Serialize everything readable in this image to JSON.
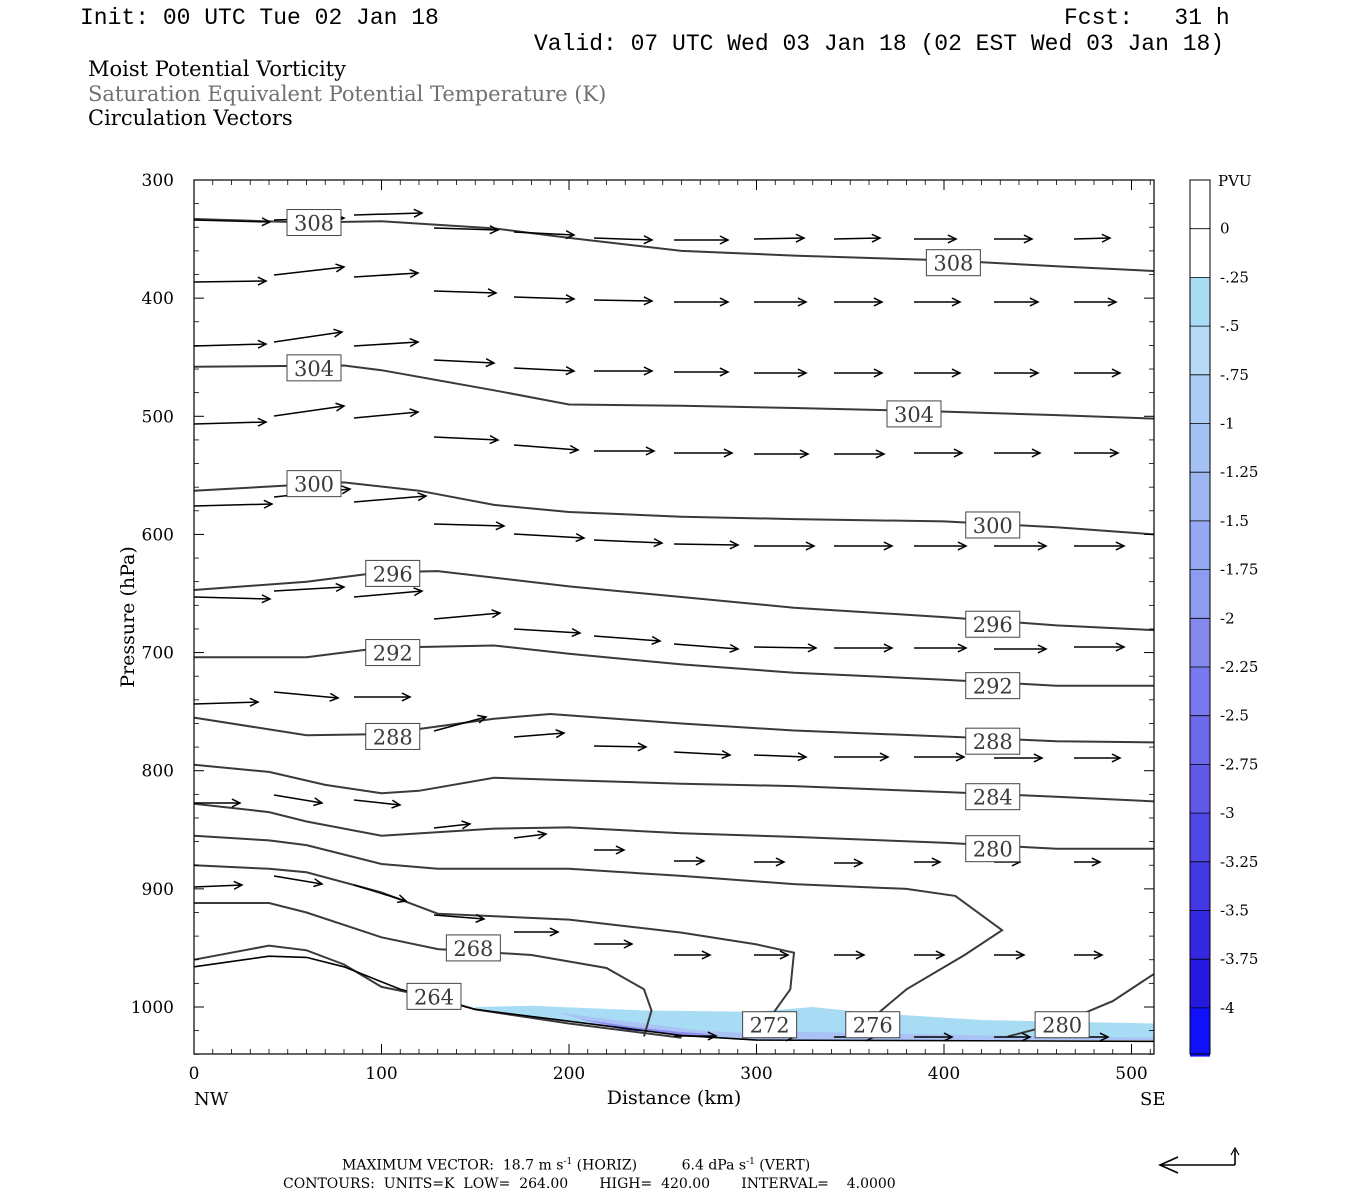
{
  "header": {
    "init": "Init: 00 UTC Tue 02 Jan 18",
    "fcst": "Fcst:   31 h",
    "valid": "Valid: 07 UTC Wed 03 Jan 18 (02 EST Wed 03 Jan 18)"
  },
  "fields": {
    "line1": "Moist Potential Vorticity",
    "line2": "Saturation Equivalent Potential Temperature (K)",
    "line3": "Circulation Vectors"
  },
  "footer": {
    "max_label": "MAXIMUM VECTOR:",
    "horiz_value": "18.7",
    "horiz_unit": "m s",
    "horiz_tag": "(HORIZ)",
    "vert_value": "6.4",
    "vert_unit": "dPa s",
    "vert_tag": "(VERT)",
    "exponent": "-1",
    "contours": "CONTOURS:  UNITS=K  LOW=  264.00       HIGH=  420.00       INTERVAL=    4.0000"
  },
  "colors": {
    "contour": "#3a3a3a",
    "pv_shade_light": "#a8dcf5",
    "pv_shade_mid": "#8c8cf0",
    "pv_shade_dark": "#4646e6"
  },
  "chart_data": {
    "type": "cross-section",
    "xlabel": "Distance (km)",
    "ylabel": "Pressure (hPa)",
    "xlim": [
      0,
      512
    ],
    "ylim": [
      300,
      1040
    ],
    "y_scale": "linear-inverted",
    "x_ticks": [
      "0",
      "100",
      "200",
      "300",
      "400",
      "500"
    ],
    "y_ticks": [
      "300",
      "400",
      "500",
      "600",
      "700",
      "800",
      "900",
      "1000"
    ],
    "x_end_labels": {
      "left": "NW",
      "right": "SE"
    },
    "colorbar": {
      "unit": "PVU",
      "labels": [
        "0",
        "-.25",
        "-.5",
        "-.75",
        "-1",
        "-1.25",
        "-1.5",
        "-1.75",
        "-2",
        "-2.25",
        "-2.5",
        "-2.75",
        "-3",
        "-3.25",
        "-3.5",
        "-3.75",
        "-4"
      ],
      "colors": [
        "#ffffff",
        "#ffffff",
        "#a8dcf5",
        "#b6daf6",
        "#abccf5",
        "#a4c1f3",
        "#9eb6f2",
        "#95a8f1",
        "#8d9bf1",
        "#8388ee",
        "#7a78ee",
        "#6b68ea",
        "#5f58e9",
        "#5048e6",
        "#4238e4",
        "#3428e3",
        "#2618e1",
        "#1010ff"
      ]
    },
    "contours": [
      {
        "value": 308,
        "label": "308",
        "labels_at": [
          [
            64,
            336
          ],
          [
            405,
            370
          ]
        ],
        "points": [
          [
            0,
            333
          ],
          [
            60,
            336
          ],
          [
            100,
            335
          ],
          [
            160,
            341
          ],
          [
            200,
            349
          ],
          [
            260,
            360
          ],
          [
            320,
            364
          ],
          [
            400,
            368
          ],
          [
            460,
            373
          ],
          [
            512,
            377
          ]
        ]
      },
      {
        "value": 304,
        "label": "304",
        "labels_at": [
          [
            64,
            459
          ],
          [
            384,
            498
          ]
        ],
        "points": [
          [
            0,
            458
          ],
          [
            80,
            457
          ],
          [
            100,
            461
          ],
          [
            160,
            478
          ],
          [
            200,
            490
          ],
          [
            260,
            491
          ],
          [
            320,
            493
          ],
          [
            400,
            496
          ],
          [
            460,
            499
          ],
          [
            512,
            502
          ]
        ]
      },
      {
        "value": 300,
        "label": "300",
        "labels_at": [
          [
            64,
            557
          ],
          [
            426,
            592
          ]
        ],
        "points": [
          [
            0,
            563
          ],
          [
            80,
            556
          ],
          [
            120,
            563
          ],
          [
            160,
            575
          ],
          [
            200,
            581
          ],
          [
            260,
            585
          ],
          [
            320,
            587
          ],
          [
            400,
            589
          ],
          [
            460,
            594
          ],
          [
            512,
            600
          ]
        ]
      },
      {
        "value": 296,
        "label": "296",
        "labels_at": [
          [
            106,
            633
          ],
          [
            426,
            676
          ]
        ],
        "points": [
          [
            0,
            647
          ],
          [
            60,
            640
          ],
          [
            100,
            632
          ],
          [
            130,
            631
          ],
          [
            200,
            644
          ],
          [
            260,
            653
          ],
          [
            320,
            662
          ],
          [
            400,
            670
          ],
          [
            460,
            677
          ],
          [
            512,
            681
          ]
        ]
      },
      {
        "value": 292,
        "label": "292",
        "labels_at": [
          [
            106,
            700
          ],
          [
            426,
            728
          ]
        ],
        "points": [
          [
            0,
            704
          ],
          [
            60,
            704
          ],
          [
            100,
            696
          ],
          [
            160,
            694
          ],
          [
            200,
            701
          ],
          [
            260,
            710
          ],
          [
            320,
            717
          ],
          [
            400,
            723
          ],
          [
            460,
            728
          ],
          [
            512,
            728
          ]
        ]
      },
      {
        "value": 288,
        "label": "288",
        "labels_at": [
          [
            106,
            771
          ],
          [
            426,
            775
          ]
        ],
        "points": [
          [
            0,
            755
          ],
          [
            60,
            770
          ],
          [
            100,
            769
          ],
          [
            160,
            756
          ],
          [
            190,
            752
          ],
          [
            260,
            760
          ],
          [
            320,
            766
          ],
          [
            400,
            771
          ],
          [
            460,
            775
          ],
          [
            512,
            776
          ]
        ]
      },
      {
        "value": 284,
        "label": "284",
        "labels_at": [
          [
            426,
            822
          ]
        ],
        "points": [
          [
            0,
            795
          ],
          [
            40,
            801
          ],
          [
            70,
            812
          ],
          [
            100,
            819
          ],
          [
            120,
            817
          ],
          [
            160,
            806
          ],
          [
            200,
            808
          ],
          [
            260,
            811
          ],
          [
            320,
            813
          ],
          [
            400,
            818
          ],
          [
            460,
            822
          ],
          [
            512,
            826
          ]
        ]
      },
      {
        "value": 280,
        "label": "280",
        "labels_at": [
          [
            426,
            866
          ]
        ],
        "points": [
          [
            0,
            828
          ],
          [
            40,
            835
          ],
          [
            60,
            843
          ],
          [
            100,
            855
          ],
          [
            160,
            849
          ],
          [
            200,
            848
          ],
          [
            260,
            853
          ],
          [
            320,
            856
          ],
          [
            400,
            861
          ],
          [
            460,
            866
          ],
          [
            512,
            866
          ]
        ]
      },
      {
        "value": 276,
        "label": "",
        "labels_at": [],
        "points": [
          [
            0,
            855
          ],
          [
            40,
            859
          ],
          [
            60,
            863
          ],
          [
            100,
            879
          ],
          [
            130,
            883
          ],
          [
            200,
            883
          ],
          [
            260,
            889
          ],
          [
            320,
            896
          ],
          [
            380,
            900
          ],
          [
            406,
            906
          ],
          [
            431,
            935
          ],
          [
            411,
            956
          ],
          [
            380,
            985
          ],
          [
            350,
            1025
          ]
        ]
      },
      {
        "value": 272,
        "label": "",
        "labels_at": [],
        "points": [
          [
            0,
            880
          ],
          [
            40,
            883
          ],
          [
            60,
            886
          ],
          [
            100,
            903
          ],
          [
            130,
            921
          ],
          [
            200,
            926
          ],
          [
            260,
            937
          ],
          [
            300,
            947
          ],
          [
            320,
            954
          ],
          [
            318,
            985
          ],
          [
            300,
            1025
          ]
        ]
      },
      {
        "value": 268,
        "label": "268",
        "labels_at": [
          [
            149,
            950
          ]
        ],
        "points": [
          [
            0,
            912
          ],
          [
            40,
            912
          ],
          [
            60,
            920
          ],
          [
            100,
            941
          ],
          [
            130,
            951
          ],
          [
            180,
            956
          ],
          [
            220,
            967
          ],
          [
            240,
            985
          ],
          [
            244,
            1003
          ],
          [
            240,
            1025
          ]
        ]
      },
      {
        "value": 264,
        "label": "264",
        "labels_at": [
          [
            128,
            991
          ]
        ],
        "points": [
          [
            0,
            960
          ],
          [
            40,
            948
          ],
          [
            60,
            952
          ],
          [
            80,
            964
          ],
          [
            100,
            983
          ],
          [
            128,
            992
          ],
          [
            150,
            1002
          ],
          [
            200,
            1014
          ],
          [
            260,
            1026
          ]
        ]
      },
      {
        "value": 276,
        "label": "276",
        "labels_at": [
          [
            362,
            1015
          ]
        ],
        "points": []
      },
      {
        "value": 272,
        "label": "272",
        "labels_at": [
          [
            307,
            1015
          ]
        ],
        "points": []
      },
      {
        "value": 280,
        "label": "280",
        "labels_at": [
          [
            463,
            1015
          ]
        ],
        "points": [
          [
            434,
            1025
          ],
          [
            463,
            1013
          ],
          [
            490,
            995
          ],
          [
            512,
            972
          ]
        ]
      }
    ],
    "terrain_pressure": [
      [
        0,
        966
      ],
      [
        40,
        957
      ],
      [
        60,
        958
      ],
      [
        80,
        966
      ],
      [
        110,
        985
      ],
      [
        150,
        1002
      ],
      [
        200,
        1012
      ],
      [
        260,
        1024
      ],
      [
        300,
        1028
      ],
      [
        512,
        1029
      ]
    ]
  }
}
